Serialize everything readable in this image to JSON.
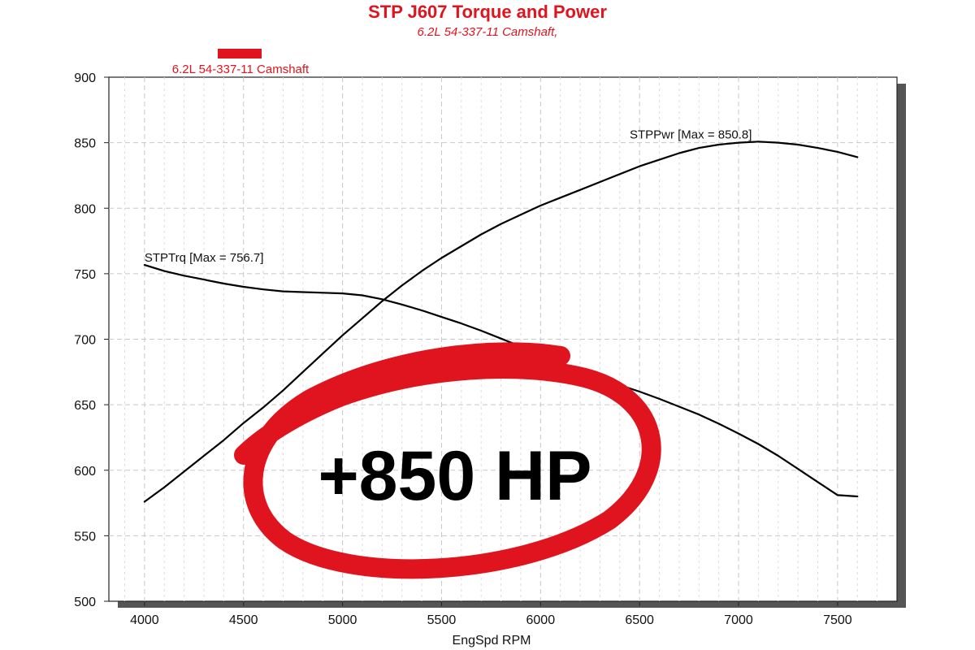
{
  "chart_data": {
    "type": "line",
    "title": "STP J607 Torque and Power",
    "subtitle": "6.2L 54-337-11 Camshaft,",
    "legend": [
      {
        "label": "6.2L 54-337-11 Camshaft",
        "color": "#e0141e"
      }
    ],
    "xlabel": "EngSpd RPM",
    "ylabel": "",
    "xlim": [
      3820,
      7800
    ],
    "ylim": [
      500,
      900
    ],
    "x_ticks": [
      "4000",
      "4500",
      "5000",
      "5500",
      "6000",
      "6500",
      "7000",
      "7500"
    ],
    "y_ticks": [
      "500",
      "550",
      "600",
      "650",
      "700",
      "750",
      "800",
      "850",
      "900"
    ],
    "grid": true,
    "series": [
      {
        "name": "STPTrq",
        "annotation": "STPTrq [Max = 756.7]",
        "color": "#000000",
        "x": [
          4000,
          4100,
          4200,
          4300,
          4400,
          4500,
          4600,
          4700,
          4800,
          4900,
          5000,
          5100,
          5200,
          5300,
          5400,
          5500,
          5600,
          5700,
          5800,
          5900,
          6000,
          6100,
          6200,
          6300,
          6400,
          6500,
          6600,
          6700,
          6800,
          6900,
          7000,
          7100,
          7200,
          7300,
          7400,
          7500,
          7600
        ],
        "values": [
          756.7,
          752,
          748.5,
          745.5,
          742.5,
          740,
          738,
          736.5,
          736,
          735.5,
          735,
          733.5,
          730.5,
          726.5,
          722,
          717,
          712,
          706.5,
          700.5,
          694.5,
          688.5,
          682,
          676,
          670.5,
          665,
          660,
          654.5,
          648.5,
          642.5,
          635.5,
          628,
          620,
          611,
          601,
          591,
          581,
          580
        ]
      },
      {
        "name": "STPPwr",
        "annotation": "STPPwr [Max = 850.8]",
        "color": "#000000",
        "x": [
          4000,
          4100,
          4200,
          4300,
          4400,
          4500,
          4600,
          4700,
          4800,
          4900,
          5000,
          5100,
          5200,
          5300,
          5400,
          5500,
          5600,
          5700,
          5800,
          5900,
          6000,
          6100,
          6200,
          6300,
          6400,
          6500,
          6600,
          6700,
          6800,
          6900,
          7000,
          7100,
          7200,
          7300,
          7400,
          7500,
          7600
        ],
        "values": [
          576,
          587,
          599,
          611,
          623,
          636,
          648,
          661,
          675,
          689,
          703,
          716,
          729,
          741,
          752,
          762,
          771,
          780,
          788,
          795,
          802,
          808,
          814,
          820,
          826,
          832,
          837,
          842,
          846,
          848.5,
          850,
          850.8,
          850,
          848.5,
          846,
          843,
          839
        ]
      }
    ]
  },
  "badge": {
    "text": "+850 HP",
    "color": "#e0141e"
  }
}
